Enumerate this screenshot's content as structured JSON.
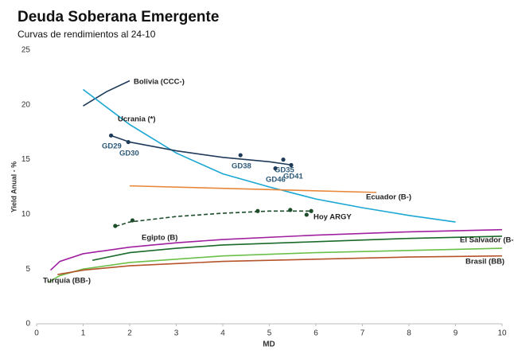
{
  "chart_data": {
    "type": "line",
    "title": "Deuda Soberana Emergente",
    "subtitle": "Curvas de rendimientos al 24-10",
    "x_label": "MD",
    "y_label": "Yield Anual - %",
    "xlim": [
      0,
      10
    ],
    "ylim": [
      0,
      25
    ],
    "xticks": [
      0,
      1,
      2,
      3,
      4,
      5,
      6,
      7,
      8,
      9,
      10
    ],
    "yticks": [
      0,
      5,
      10,
      15,
      20,
      25
    ],
    "series": [
      {
        "name": "Bolivia (CCC-)",
        "color": "#1f3b5a",
        "x": [
          1.0,
          1.5,
          2.0
        ],
        "values": [
          19.9,
          21.2,
          22.2
        ]
      },
      {
        "name": "Ucrania (*)",
        "color": "#1aa7d4",
        "x": [
          1,
          2,
          3,
          4,
          5,
          6,
          7,
          8,
          9
        ],
        "values": [
          21.4,
          18.2,
          15.6,
          13.7,
          12.5,
          11.4,
          10.6,
          9.9,
          9.3
        ]
      },
      {
        "color": "#1f3b5a",
        "x": [
          1.6,
          2,
          3,
          4,
          5,
          5.5
        ],
        "values": [
          17.2,
          16.6,
          15.8,
          15.2,
          14.8,
          14.5
        ]
      },
      {
        "name": "Ecuador (B-)",
        "color": "#e8873a",
        "x": [
          2.0,
          7.3
        ],
        "values": [
          12.6,
          12.0
        ]
      },
      {
        "name": "Hoy ARGY",
        "color": "#1e4d2b",
        "dashed": true,
        "x": [
          1.7,
          2,
          3,
          4,
          5,
          5.9
        ],
        "values": [
          8.9,
          9.3,
          9.8,
          10.1,
          10.3,
          10.3
        ]
      },
      {
        "name": "Egipto (B)",
        "color": "#a020a0",
        "x": [
          0.3,
          0.5,
          1,
          2,
          3,
          4,
          6,
          8,
          10
        ],
        "values": [
          4.9,
          5.7,
          6.4,
          7.0,
          7.4,
          7.7,
          8.1,
          8.4,
          8.6
        ]
      },
      {
        "name": "El Salvador (B-)",
        "color": "#1a6b2a",
        "x": [
          1.2,
          2,
          3,
          4,
          6,
          8,
          10
        ],
        "values": [
          5.8,
          6.5,
          6.9,
          7.2,
          7.5,
          7.8,
          8.0
        ]
      },
      {
        "name": "Turquía (BB-)",
        "color": "#6cc04a",
        "x": [
          0.25,
          0.5,
          1,
          2,
          3,
          4,
          6,
          8,
          10
        ],
        "values": [
          3.8,
          4.4,
          5.0,
          5.6,
          5.9,
          6.2,
          6.5,
          6.7,
          6.9
        ]
      },
      {
        "name": "Brasil (BB)",
        "color": "#b5532a",
        "x": [
          0.45,
          1,
          2,
          3,
          4,
          6,
          8,
          10
        ],
        "values": [
          4.5,
          4.9,
          5.3,
          5.5,
          5.7,
          5.9,
          6.1,
          6.2
        ]
      }
    ],
    "points": [
      {
        "color": "#1f3b5a",
        "x": [
          1.6,
          1.97,
          4.38,
          5.3,
          5.13,
          5.47
        ],
        "values": [
          17.2,
          16.6,
          15.4,
          15.0,
          14.2,
          14.5
        ],
        "labels": [
          "GD29",
          "GD30",
          "GD38",
          "GD35",
          "GD46",
          "GD41"
        ]
      },
      {
        "color": "#1e4d2b",
        "x": [
          1.69,
          2.06,
          4.75,
          5.45,
          5.8,
          5.9
        ],
        "values": [
          8.94,
          9.45,
          10.3,
          10.4,
          9.96,
          10.3
        ]
      }
    ]
  }
}
